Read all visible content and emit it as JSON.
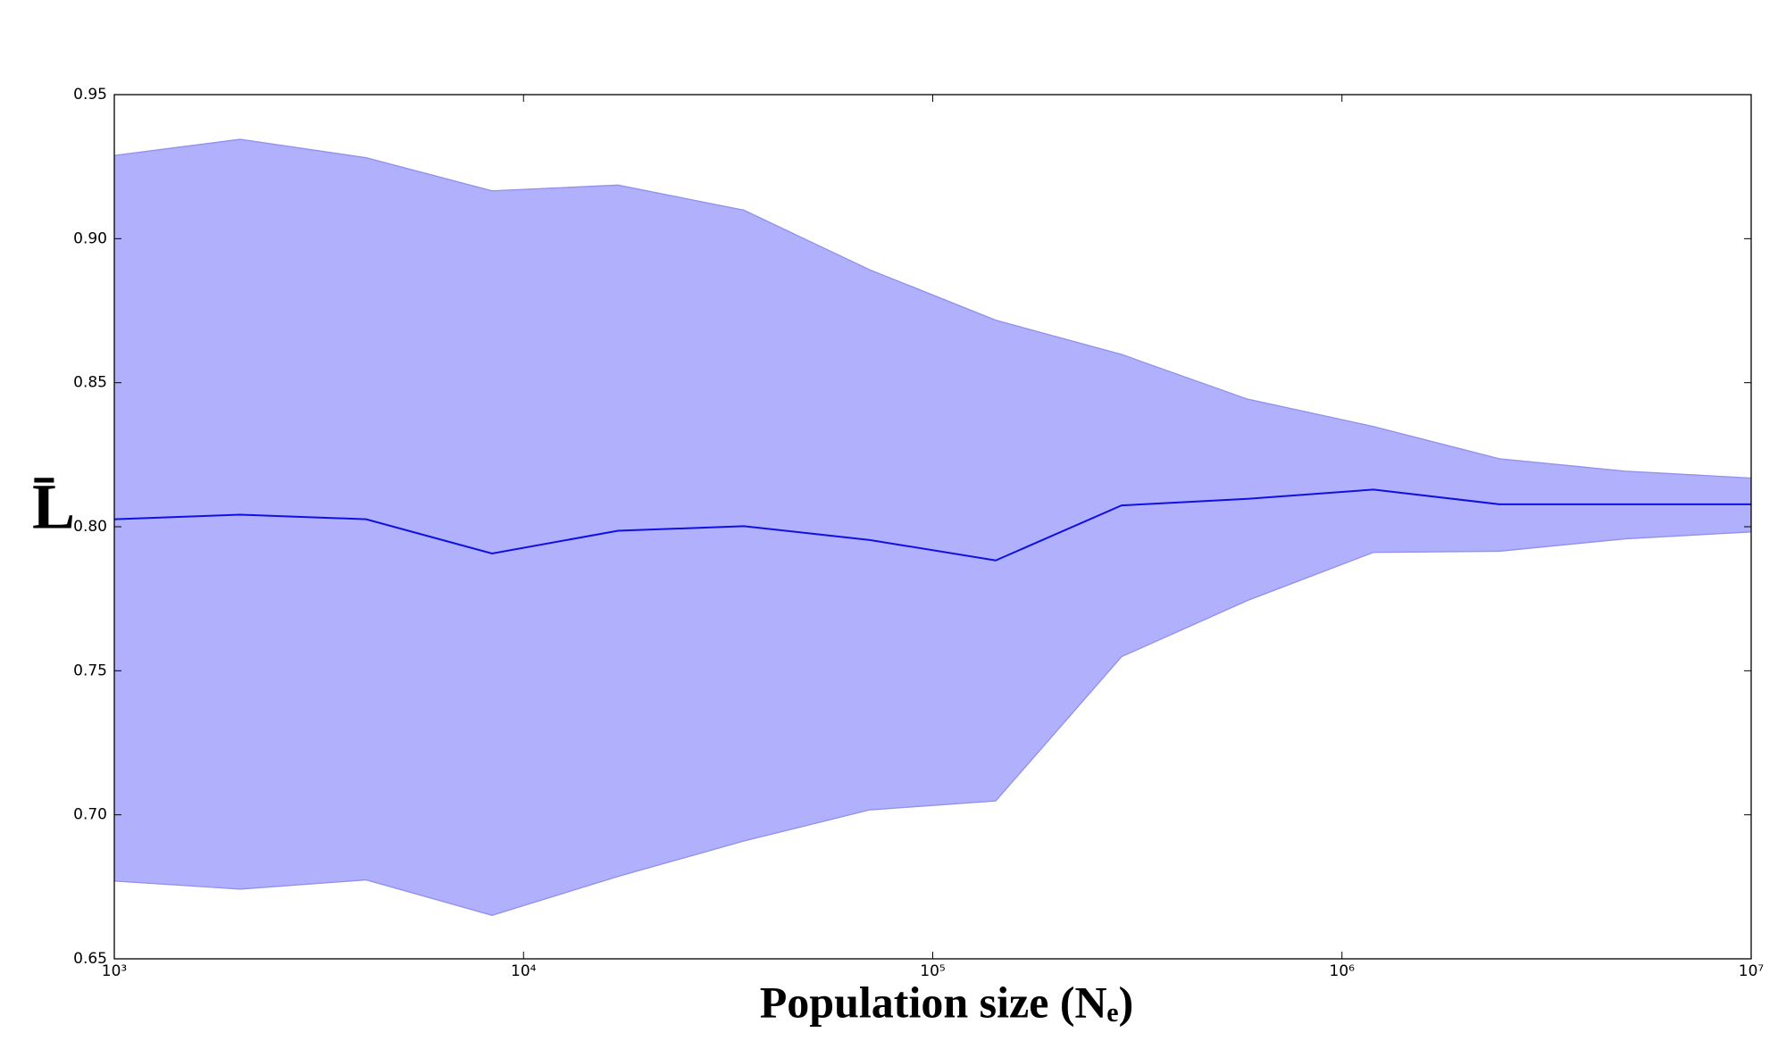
{
  "chart_data": {
    "type": "line",
    "log_x": true,
    "xlabel": "Population size (Nₑ)",
    "ylabel": "L̄",
    "x": [
      1000,
      2031,
      4125,
      8377,
      17013,
      34551,
      70170,
      142510,
      289427,
      587802,
      1193777,
      2424462,
      4923883,
      10000000
    ],
    "series": [
      {
        "color": "#1010e0",
        "values": [
          0.8026,
          0.8042,
          0.8026,
          0.7907,
          0.7986,
          0.8002,
          0.7954,
          0.7883,
          0.8074,
          0.8097,
          0.8129,
          0.8078,
          0.8078,
          0.8078
        ]
      }
    ],
    "band": {
      "color": "#b0b0fc",
      "edge": "#9090f0",
      "upper": [
        0.9289,
        0.9345,
        0.9281,
        0.9166,
        0.9186,
        0.9099,
        0.8892,
        0.8717,
        0.8598,
        0.8443,
        0.8348,
        0.8236,
        0.8193,
        0.8169
      ],
      "lower": [
        0.677,
        0.6742,
        0.6774,
        0.6651,
        0.6786,
        0.6909,
        0.7017,
        0.7048,
        0.7549,
        0.7744,
        0.7911,
        0.7915,
        0.7958,
        0.7982
      ]
    },
    "xlim": [
      1000,
      10000000
    ],
    "xticks": [
      {
        "value": 1000,
        "label": "10³"
      },
      {
        "value": 10000,
        "label": "10⁴"
      },
      {
        "value": 100000,
        "label": "10⁵"
      },
      {
        "value": 1000000,
        "label": "10⁶"
      },
      {
        "value": 10000000,
        "label": "10⁷"
      }
    ],
    "ylim": [
      0.65,
      0.95
    ],
    "yticks": [
      {
        "value": 0.65,
        "label": "0.65"
      },
      {
        "value": 0.7,
        "label": "0.70"
      },
      {
        "value": 0.75,
        "label": "0.75"
      },
      {
        "value": 0.8,
        "label": "0.80"
      },
      {
        "value": 0.85,
        "label": "0.85"
      },
      {
        "value": 0.9,
        "label": "0.90"
      },
      {
        "value": 0.95,
        "label": "0.95"
      }
    ]
  }
}
